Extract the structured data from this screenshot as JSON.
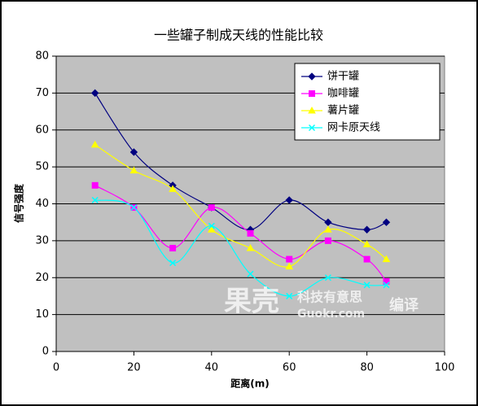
{
  "chart_data": {
    "type": "line",
    "title": "一些罐子制成天线的性能比较",
    "x_label": "距离(m)",
    "y_label": "信号强度",
    "x": [
      10,
      20,
      30,
      40,
      50,
      60,
      70,
      80,
      85
    ],
    "series": [
      {
        "name": "饼干罐",
        "color": "#000080",
        "marker": "diamond",
        "values": [
          70,
          54,
          45,
          39,
          33,
          41,
          35,
          33,
          35
        ]
      },
      {
        "name": "咖啡罐",
        "color": "#ff00ff",
        "marker": "square",
        "values": [
          45,
          39,
          28,
          39,
          32,
          25,
          30,
          25,
          19
        ]
      },
      {
        "name": "薯片罐",
        "color": "#ffff00",
        "marker": "triangle",
        "values": [
          56,
          49,
          44,
          33,
          28,
          23,
          33,
          29,
          25
        ]
      },
      {
        "name": "网卡原天线",
        "color": "#00ffff",
        "marker": "x",
        "values": [
          41,
          39,
          24,
          34,
          21,
          15,
          20,
          18,
          18
        ]
      }
    ],
    "xlim": [
      0,
      100
    ],
    "xticks": [
      0,
      20,
      40,
      60,
      80,
      100
    ],
    "ylim": [
      0,
      80
    ],
    "yticks": [
      0,
      10,
      20,
      30,
      40,
      50,
      60,
      70,
      80
    ],
    "grid": true,
    "legend": "top-right",
    "smooth": true,
    "watermark": {
      "brand": "果壳",
      "slogan": "科技有意思",
      "site": "Guokr.com",
      "tag": "编译"
    }
  }
}
